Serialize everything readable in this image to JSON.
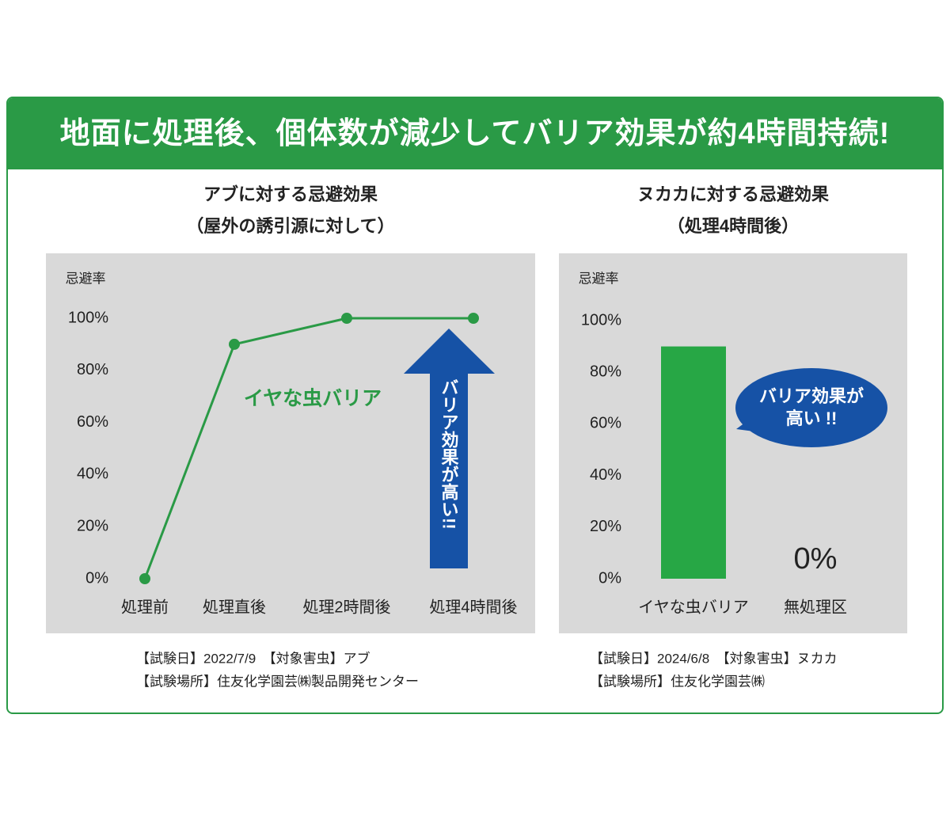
{
  "header": {
    "title": "地面に処理後、個体数が減少してバリア効果が約4時間持続!"
  },
  "chart_data": [
    {
      "type": "line",
      "title": "アブに対する忌避効果",
      "subtitle": "（屋外の誘引源に対して）",
      "y_label": "忌避率",
      "categories": [
        "処理前",
        "処理直後",
        "処理2時間後",
        "処理4時間後"
      ],
      "series": [
        {
          "name": "イヤな虫バリア",
          "color": "#2a9a46",
          "values": [
            0,
            90,
            100,
            100
          ]
        }
      ],
      "ylim": [
        0,
        100
      ],
      "yticks": [
        {
          "value": 0,
          "label": "0%"
        },
        {
          "value": 20,
          "label": "20%"
        },
        {
          "value": 40,
          "label": "40%"
        },
        {
          "value": 60,
          "label": "60%"
        },
        {
          "value": 80,
          "label": "80%"
        },
        {
          "value": 100,
          "label": "100%"
        }
      ],
      "annotation": "バリア効果が高い!!",
      "notes": [
        "【試験日】2022/7/9　【対象害虫】アブ",
        "【試験場所】住友化学園芸㈱製品開発センター"
      ]
    },
    {
      "type": "bar",
      "title": "ヌカカに対する忌避効果",
      "subtitle": "（処理4時間後）",
      "y_label": "忌避率",
      "categories": [
        "イヤな虫バリア",
        "無処理区"
      ],
      "values": [
        90,
        0
      ],
      "value_labels": [
        null,
        "0%"
      ],
      "color": "#27a745",
      "ylim": [
        0,
        100
      ],
      "yticks": [
        {
          "value": 0,
          "label": "0%"
        },
        {
          "value": 20,
          "label": "20%"
        },
        {
          "value": 40,
          "label": "40%"
        },
        {
          "value": 60,
          "label": "60%"
        },
        {
          "value": 80,
          "label": "80%"
        },
        {
          "value": 100,
          "label": "100%"
        }
      ],
      "annotation": [
        "バリア効果が",
        "高い !!"
      ],
      "notes": [
        "【試験日】2024/6/8　【対象害虫】ヌカカ",
        "【試験場所】住友化学園芸㈱"
      ]
    }
  ]
}
